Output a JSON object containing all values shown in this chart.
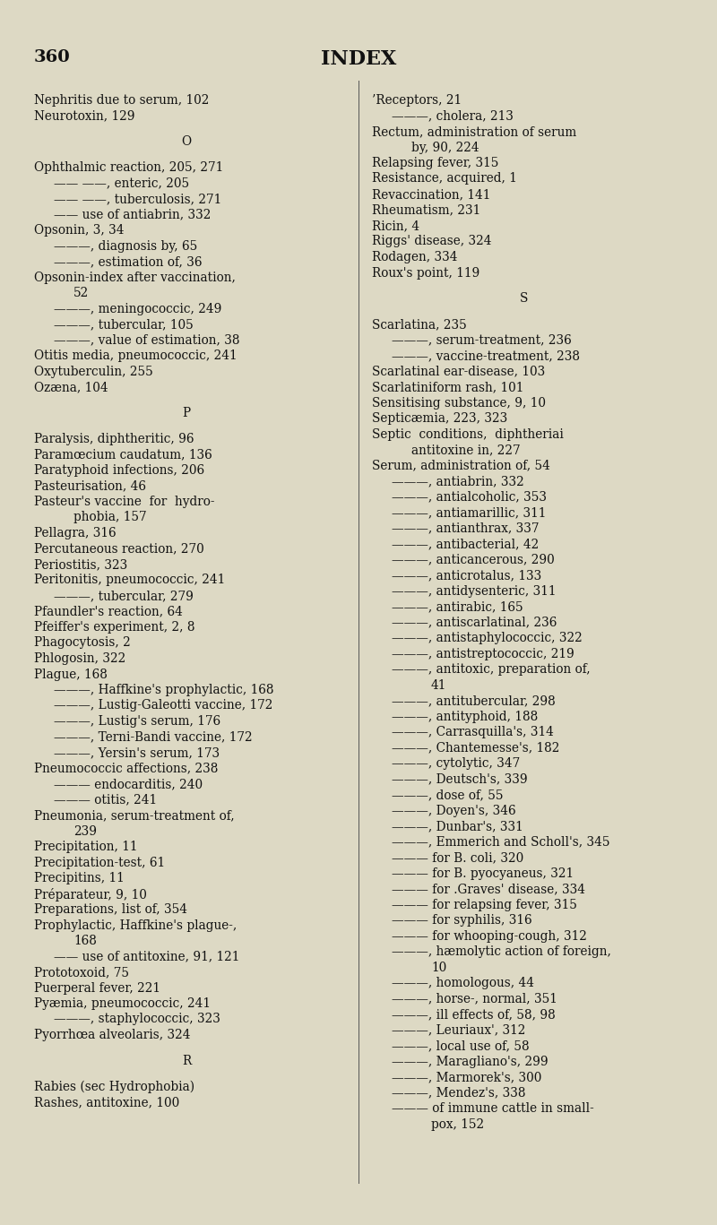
{
  "background_color": "#ddd9c4",
  "text_color": "#111111",
  "page_number": "360",
  "title": "INDEX",
  "font_size": 9.5,
  "title_font_size": 15,
  "header_font_size": 13,
  "left_column": [
    {
      "text": "Nephritis due to serum, 102",
      "indent": 0,
      "section": false
    },
    {
      "text": "Neurotoxin, 129",
      "indent": 0,
      "section": false
    },
    {
      "text": "",
      "indent": 0,
      "section": false
    },
    {
      "text": "O",
      "indent": 0,
      "section": true
    },
    {
      "text": "",
      "indent": 0,
      "section": false
    },
    {
      "text": "Ophthalmic reaction, 205, 271",
      "indent": 0,
      "section": false
    },
    {
      "text": "—— ——, enteric, 205",
      "indent": 1,
      "section": false
    },
    {
      "text": "—— ——, tuberculosis, 271",
      "indent": 1,
      "section": false
    },
    {
      "text": "—— use of antiabrin, 332",
      "indent": 1,
      "section": false
    },
    {
      "text": "Opsonin, 3, 34",
      "indent": 0,
      "section": false
    },
    {
      "text": "———, diagnosis by, 65",
      "indent": 1,
      "section": false
    },
    {
      "text": "———, estimation of, 36",
      "indent": 1,
      "section": false
    },
    {
      "text": "Opsonin-index after vaccination,",
      "indent": 0,
      "section": false
    },
    {
      "text": "52",
      "indent": 2,
      "section": false
    },
    {
      "text": "———, meningococcic, 249",
      "indent": 1,
      "section": false
    },
    {
      "text": "———, tubercular, 105",
      "indent": 1,
      "section": false
    },
    {
      "text": "———, value of estimation, 38",
      "indent": 1,
      "section": false
    },
    {
      "text": "Otitis media, pneumococcic, 241",
      "indent": 0,
      "section": false
    },
    {
      "text": "Oxytuberculin, 255",
      "indent": 0,
      "section": false
    },
    {
      "text": "Ozæna, 104",
      "indent": 0,
      "section": false
    },
    {
      "text": "",
      "indent": 0,
      "section": false
    },
    {
      "text": "P",
      "indent": 0,
      "section": true
    },
    {
      "text": "",
      "indent": 0,
      "section": false
    },
    {
      "text": "Paralysis, diphtheritic, 96",
      "indent": 0,
      "section": false
    },
    {
      "text": "Paramœcium caudatum, 136",
      "indent": 0,
      "section": false
    },
    {
      "text": "Paratyphoid infections, 206",
      "indent": 0,
      "section": false
    },
    {
      "text": "Pasteurisation, 46",
      "indent": 0,
      "section": false
    },
    {
      "text": "Pasteur's vaccine  for  hydro-",
      "indent": 0,
      "section": false
    },
    {
      "text": "phobia, 157",
      "indent": 2,
      "section": false
    },
    {
      "text": "Pellagra, 316",
      "indent": 0,
      "section": false
    },
    {
      "text": "Percutaneous reaction, 270",
      "indent": 0,
      "section": false
    },
    {
      "text": "Periostitis, 323",
      "indent": 0,
      "section": false
    },
    {
      "text": "Peritonitis, pneumococcic, 241",
      "indent": 0,
      "section": false
    },
    {
      "text": "———, tubercular, 279",
      "indent": 1,
      "section": false
    },
    {
      "text": "Pfaundler's reaction, 64",
      "indent": 0,
      "section": false
    },
    {
      "text": "Pfeiffer's experiment, 2, 8",
      "indent": 0,
      "section": false
    },
    {
      "text": "Phagocytosis, 2",
      "indent": 0,
      "section": false
    },
    {
      "text": "Phlogosin, 322",
      "indent": 0,
      "section": false
    },
    {
      "text": "Plague, 168",
      "indent": 0,
      "section": false
    },
    {
      "text": "———, Haffkine's prophylactic, 168",
      "indent": 1,
      "section": false
    },
    {
      "text": "———, Lustig-Galeotti vaccine, 172",
      "indent": 1,
      "section": false
    },
    {
      "text": "———, Lustig's serum, 176",
      "indent": 1,
      "section": false
    },
    {
      "text": "———, Terni-Bandi vaccine, 172",
      "indent": 1,
      "section": false
    },
    {
      "text": "———, Yersin's serum, 173",
      "indent": 1,
      "section": false
    },
    {
      "text": "Pneumococcic affections, 238",
      "indent": 0,
      "section": false
    },
    {
      "text": "——— endocarditis, 240",
      "indent": 1,
      "section": false
    },
    {
      "text": "——— otitis, 241",
      "indent": 1,
      "section": false
    },
    {
      "text": "Pneumonia, serum-treatment of,",
      "indent": 0,
      "section": false
    },
    {
      "text": "239",
      "indent": 2,
      "section": false
    },
    {
      "text": "Precipitation, 11",
      "indent": 0,
      "section": false
    },
    {
      "text": "Precipitation-test, 61",
      "indent": 0,
      "section": false
    },
    {
      "text": "Precipitins, 11",
      "indent": 0,
      "section": false
    },
    {
      "text": "Préparateur, 9, 10",
      "indent": 0,
      "section": false
    },
    {
      "text": "Preparations, list of, 354",
      "indent": 0,
      "section": false
    },
    {
      "text": "Prophylactic, Haffkine's plague-,",
      "indent": 0,
      "section": false
    },
    {
      "text": "168",
      "indent": 2,
      "section": false
    },
    {
      "text": "—— use of antitoxine, 91, 121",
      "indent": 1,
      "section": false
    },
    {
      "text": "Prototoxoid, 75",
      "indent": 0,
      "section": false
    },
    {
      "text": "Puerperal fever, 221",
      "indent": 0,
      "section": false
    },
    {
      "text": "Pyæmia, pneumococcic, 241",
      "indent": 0,
      "section": false
    },
    {
      "text": "———, staphylococcic, 323",
      "indent": 1,
      "section": false
    },
    {
      "text": "Pyorrhœa alveolaris, 324",
      "indent": 0,
      "section": false
    },
    {
      "text": "",
      "indent": 0,
      "section": false
    },
    {
      "text": "R",
      "indent": 0,
      "section": true
    },
    {
      "text": "",
      "indent": 0,
      "section": false
    },
    {
      "text": "Rabies (sec Hydrophobia)",
      "indent": 0,
      "section": false
    },
    {
      "text": "Rashes, antitoxine, 100",
      "indent": 0,
      "section": false
    }
  ],
  "right_column": [
    {
      "text": "’Receptors, 21",
      "indent": 0,
      "section": false
    },
    {
      "text": "———, cholera, 213",
      "indent": 1,
      "section": false
    },
    {
      "text": "Rectum, administration of serum",
      "indent": 0,
      "section": false
    },
    {
      "text": "by, 90, 224",
      "indent": 2,
      "section": false
    },
    {
      "text": "Relapsing fever, 315",
      "indent": 0,
      "section": false
    },
    {
      "text": "Resistance, acquired, 1",
      "indent": 0,
      "section": false
    },
    {
      "text": "Revaccination, 141",
      "indent": 0,
      "section": false
    },
    {
      "text": "Rheumatism, 231",
      "indent": 0,
      "section": false
    },
    {
      "text": "Ricin, 4",
      "indent": 0,
      "section": false
    },
    {
      "text": "Riggs' disease, 324",
      "indent": 0,
      "section": false
    },
    {
      "text": "Rodagen, 334",
      "indent": 0,
      "section": false
    },
    {
      "text": "Roux's point, 119",
      "indent": 0,
      "section": false
    },
    {
      "text": "",
      "indent": 0,
      "section": false
    },
    {
      "text": "S",
      "indent": 0,
      "section": true
    },
    {
      "text": "",
      "indent": 0,
      "section": false
    },
    {
      "text": "Scarlatina, 235",
      "indent": 0,
      "section": false
    },
    {
      "text": "———, serum-treatment, 236",
      "indent": 1,
      "section": false
    },
    {
      "text": "———, vaccine-treatment, 238",
      "indent": 1,
      "section": false
    },
    {
      "text": "Scarlatinal ear-disease, 103",
      "indent": 0,
      "section": false
    },
    {
      "text": "Scarlatiniform rash, 101",
      "indent": 0,
      "section": false
    },
    {
      "text": "Sensitising substance, 9, 10",
      "indent": 0,
      "section": false
    },
    {
      "text": "Septicæmia, 223, 323",
      "indent": 0,
      "section": false
    },
    {
      "text": "Septic  conditions,  diphtheriai",
      "indent": 0,
      "section": false
    },
    {
      "text": "antitoxine in, 227",
      "indent": 2,
      "section": false
    },
    {
      "text": "Serum, administration of, 54",
      "indent": 0,
      "section": false
    },
    {
      "text": "———, antiabrin, 332",
      "indent": 1,
      "section": false
    },
    {
      "text": "———, antialcoholic, 353",
      "indent": 1,
      "section": false
    },
    {
      "text": "———, antiamarillic, 311",
      "indent": 1,
      "section": false
    },
    {
      "text": "———, antianthrax, 337",
      "indent": 1,
      "section": false
    },
    {
      "text": "———, antibacterial, 42",
      "indent": 1,
      "section": false
    },
    {
      "text": "———, anticancerous, 290",
      "indent": 1,
      "section": false
    },
    {
      "text": "———, anticrotalus, 133",
      "indent": 1,
      "section": false
    },
    {
      "text": "———, antidysenteric, 311",
      "indent": 1,
      "section": false
    },
    {
      "text": "———, antirabic, 165",
      "indent": 1,
      "section": false
    },
    {
      "text": "———, antiscarlatinal, 236",
      "indent": 1,
      "section": false
    },
    {
      "text": "———, antistaphylococcic, 322",
      "indent": 1,
      "section": false
    },
    {
      "text": "———, antistreptococcic, 219",
      "indent": 1,
      "section": false
    },
    {
      "text": "———, antitoxic, preparation of,",
      "indent": 1,
      "section": false
    },
    {
      "text": "41",
      "indent": 3,
      "section": false
    },
    {
      "text": "———, antitubercular, 298",
      "indent": 1,
      "section": false
    },
    {
      "text": "———, antityphoid, 188",
      "indent": 1,
      "section": false
    },
    {
      "text": "———, Carrasquilla's, 314",
      "indent": 1,
      "section": false
    },
    {
      "text": "———, Chantemesse's, 182",
      "indent": 1,
      "section": false
    },
    {
      "text": "———, cytolytic, 347",
      "indent": 1,
      "section": false
    },
    {
      "text": "———, Deutsch's, 339",
      "indent": 1,
      "section": false
    },
    {
      "text": "———, dose of, 55",
      "indent": 1,
      "section": false
    },
    {
      "text": "———, Doyen's, 346",
      "indent": 1,
      "section": false
    },
    {
      "text": "———, Dunbar's, 331",
      "indent": 1,
      "section": false
    },
    {
      "text": "———, Emmerich and Scholl's, 345",
      "indent": 1,
      "section": false
    },
    {
      "text": "——— for B. coli, 320",
      "indent": 1,
      "section": false
    },
    {
      "text": "——— for B. pyocyaneus, 321",
      "indent": 1,
      "section": false
    },
    {
      "text": "——— for .Graves' disease, 334",
      "indent": 1,
      "section": false
    },
    {
      "text": "——— for relapsing fever, 315",
      "indent": 1,
      "section": false
    },
    {
      "text": "——— for syphilis, 316",
      "indent": 1,
      "section": false
    },
    {
      "text": "——— for whooping-cough, 312",
      "indent": 1,
      "section": false
    },
    {
      "text": "———, hæmolytic action of foreign,",
      "indent": 1,
      "section": false
    },
    {
      "text": "10",
      "indent": 3,
      "section": false
    },
    {
      "text": "———, homologous, 44",
      "indent": 1,
      "section": false
    },
    {
      "text": "———, horse-, normal, 351",
      "indent": 1,
      "section": false
    },
    {
      "text": "———, ill effects of, 58, 98",
      "indent": 1,
      "section": false
    },
    {
      "text": "———, Leuriaux', 312",
      "indent": 1,
      "section": false
    },
    {
      "text": "———, local use of, 58",
      "indent": 1,
      "section": false
    },
    {
      "text": "———, Maragliano's, 299",
      "indent": 1,
      "section": false
    },
    {
      "text": "———, Marmorek's, 300",
      "indent": 1,
      "section": false
    },
    {
      "text": "———, Mendez's, 338",
      "indent": 1,
      "section": false
    },
    {
      "text": "——— of immune cattle in small-",
      "indent": 1,
      "section": false
    },
    {
      "text": "pox, 152",
      "indent": 3,
      "section": false
    }
  ]
}
